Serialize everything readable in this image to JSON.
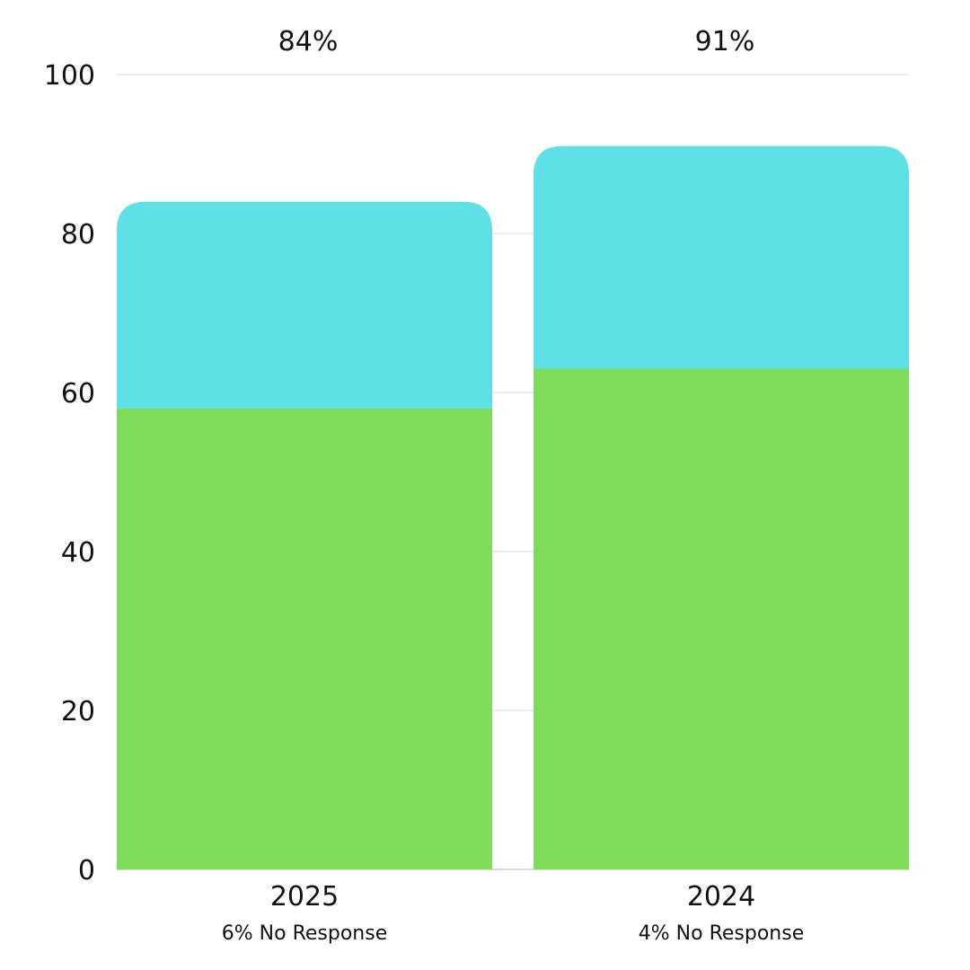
{
  "chart_data": {
    "type": "bar",
    "stacked": true,
    "title": "",
    "xlabel": "",
    "ylabel": "",
    "ylim": [
      0,
      100
    ],
    "y_ticks": [
      "0",
      "20",
      "40",
      "60",
      "80",
      "100"
    ],
    "grid": true,
    "categories": [
      "2025",
      "2024"
    ],
    "category_notes": [
      "6% No Response",
      "4% No Response"
    ],
    "totals": [
      "84%",
      "91%"
    ],
    "total_values": [
      84,
      91
    ],
    "series": [
      {
        "values": [
          58,
          63
        ],
        "color": "#80DB5A"
      },
      {
        "values": [
          26,
          28
        ],
        "color": "#5DE1E6"
      }
    ],
    "colors": {
      "grid": "#D9D9D9",
      "axis": "#B3B3B3",
      "text": "#111111"
    }
  }
}
